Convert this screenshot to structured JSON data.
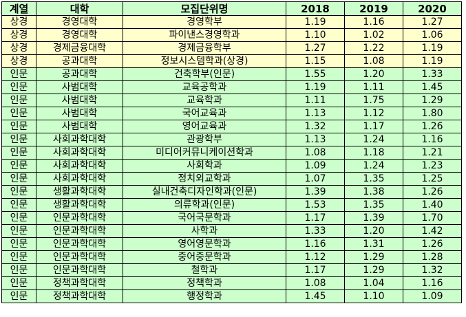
{
  "colors": {
    "header_bg": "#ccffcc",
    "상경": "#ffffcc",
    "인문": "#ccffcc"
  },
  "table": {
    "headers": [
      "계열",
      "대학",
      "모집단위명",
      "2018",
      "2019",
      "2020"
    ],
    "rows": [
      [
        "상경",
        "경영대학",
        "경영학부",
        "1.19",
        "1.16",
        "1.27"
      ],
      [
        "상경",
        "경영대학",
        "파이낸스경영학과",
        "1.10",
        "1.02",
        "1.06"
      ],
      [
        "상경",
        "경제금융대학",
        "경제금융학부",
        "1.27",
        "1.22",
        "1.19"
      ],
      [
        "상경",
        "공과대학",
        "정보시스템학과(상경)",
        "1.15",
        "1.08",
        "1.19"
      ],
      [
        "인문",
        "공과대학",
        "건축학부(인문)",
        "1.55",
        "1.20",
        "1.33"
      ],
      [
        "인문",
        "사범대학",
        "교육공학과",
        "1.19",
        "1.11",
        "1.45"
      ],
      [
        "인문",
        "사범대학",
        "교육학과",
        "1.11",
        "1.75",
        "1.29"
      ],
      [
        "인문",
        "사범대학",
        "국어교육과",
        "1.13",
        "1.12",
        "1.80"
      ],
      [
        "인문",
        "사범대학",
        "영어교육과",
        "1.32",
        "1.17",
        "1.26"
      ],
      [
        "인문",
        "사회과학대학",
        "관광학부",
        "1.13",
        "1.24",
        "1.16"
      ],
      [
        "인문",
        "사회과학대학",
        "미디어커뮤니케이션학과",
        "1.08",
        "1.18",
        "1.21"
      ],
      [
        "인문",
        "사회과학대학",
        "사회학과",
        "1.09",
        "1.24",
        "1.23"
      ],
      [
        "인문",
        "사회과학대학",
        "정치외교학과",
        "1.07",
        "1.35",
        "1.25"
      ],
      [
        "인문",
        "생활과학대학",
        "실내건축디자인학과(인문)",
        "1.39",
        "1.38",
        "1.26"
      ],
      [
        "인문",
        "생활과학대학",
        "의류학과(인문)",
        "1.53",
        "1.35",
        "1.40"
      ],
      [
        "인문",
        "인문과학대학",
        "국어국문학과",
        "1.17",
        "1.39",
        "1.70"
      ],
      [
        "인문",
        "인문과학대학",
        "사학과",
        "1.33",
        "1.20",
        "1.42"
      ],
      [
        "인문",
        "인문과학대학",
        "영어영문학과",
        "1.16",
        "1.31",
        "1.26"
      ],
      [
        "인문",
        "인문과학대학",
        "중어중문학과",
        "1.12",
        "1.29",
        "1.28"
      ],
      [
        "인문",
        "인문과학대학",
        "철학과",
        "1.17",
        "1.29",
        "1.32"
      ],
      [
        "인문",
        "정책과학대학",
        "정책학과",
        "1.08",
        "1.04",
        "1.16"
      ],
      [
        "인문",
        "정책과학대학",
        "행정학과",
        "1.45",
        "1.10",
        "1.09"
      ]
    ]
  }
}
